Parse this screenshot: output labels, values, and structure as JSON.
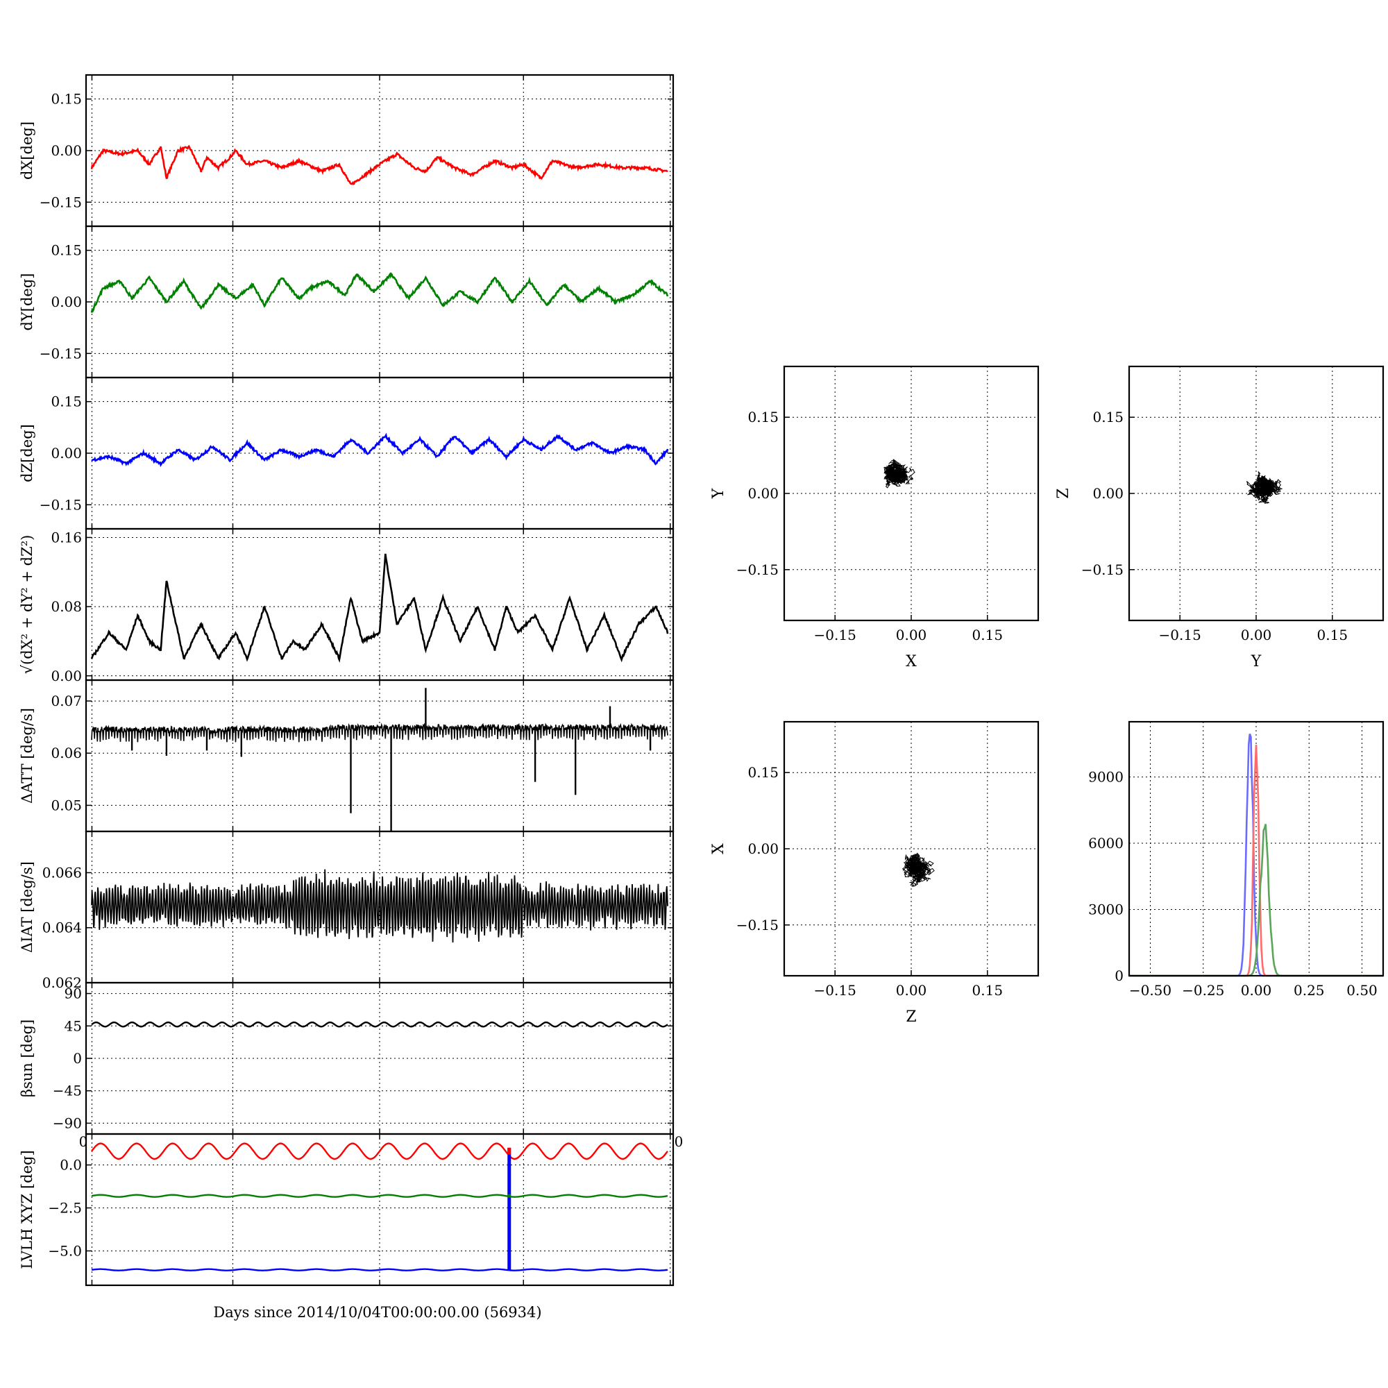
{
  "figure": {
    "xlabel": "Days since 2014/10/04T00:00:00.00 (56934)"
  },
  "chart_data": [
    {
      "id": "dx",
      "type": "line",
      "ylabel": "dX[deg]",
      "color": "#ff0000",
      "ylim": [
        -0.22,
        0.22
      ],
      "yticks": [
        -0.15,
        0.0,
        0.15
      ],
      "yticklabels": [
        "−0.15",
        "0.00",
        "0.15"
      ],
      "xlim": [
        0,
        1
      ],
      "grid": true,
      "x": [
        0,
        0.02,
        0.05,
        0.08,
        0.1,
        0.12,
        0.13,
        0.15,
        0.17,
        0.19,
        0.2,
        0.22,
        0.24,
        0.25,
        0.27,
        0.3,
        0.33,
        0.36,
        0.4,
        0.43,
        0.45,
        0.5,
        0.53,
        0.56,
        0.58,
        0.6,
        0.63,
        0.66,
        0.7,
        0.73,
        0.75,
        0.78,
        0.8,
        0.84,
        0.88,
        0.92,
        0.96,
        1.0
      ],
      "y": [
        -0.05,
        0.0,
        -0.01,
        0.0,
        -0.04,
        0.01,
        -0.08,
        0.0,
        0.01,
        -0.06,
        -0.02,
        -0.05,
        -0.02,
        0.0,
        -0.04,
        -0.03,
        -0.05,
        -0.03,
        -0.06,
        -0.04,
        -0.1,
        -0.04,
        -0.01,
        -0.05,
        -0.06,
        -0.02,
        -0.05,
        -0.07,
        -0.03,
        -0.05,
        -0.04,
        -0.08,
        -0.03,
        -0.05,
        -0.04,
        -0.05,
        -0.05,
        -0.06
      ]
    },
    {
      "id": "dy",
      "type": "line",
      "ylabel": "dY[deg]",
      "color": "#008000",
      "ylim": [
        -0.22,
        0.22
      ],
      "yticks": [
        -0.15,
        0.0,
        0.15
      ],
      "yticklabels": [
        "−0.15",
        "0.00",
        "0.15"
      ],
      "xlim": [
        0,
        1
      ],
      "grid": true,
      "x": [
        0,
        0.02,
        0.05,
        0.07,
        0.1,
        0.13,
        0.16,
        0.19,
        0.22,
        0.25,
        0.28,
        0.3,
        0.33,
        0.36,
        0.38,
        0.41,
        0.44,
        0.46,
        0.49,
        0.52,
        0.55,
        0.58,
        0.61,
        0.64,
        0.67,
        0.7,
        0.73,
        0.76,
        0.79,
        0.82,
        0.85,
        0.88,
        0.91,
        0.94,
        0.97,
        1.0
      ],
      "y": [
        -0.03,
        0.04,
        0.06,
        0.01,
        0.07,
        0.0,
        0.06,
        -0.02,
        0.05,
        0.01,
        0.05,
        -0.01,
        0.07,
        0.01,
        0.04,
        0.06,
        0.02,
        0.08,
        0.03,
        0.08,
        0.01,
        0.07,
        -0.01,
        0.03,
        0.0,
        0.07,
        0.0,
        0.06,
        -0.01,
        0.05,
        0.0,
        0.04,
        0.0,
        0.02,
        0.06,
        0.02
      ]
    },
    {
      "id": "dz",
      "type": "line",
      "ylabel": "dZ[deg]",
      "color": "#0000ff",
      "ylim": [
        -0.22,
        0.22
      ],
      "yticks": [
        -0.15,
        0.0,
        0.15
      ],
      "yticklabels": [
        "−0.15",
        "0.00",
        "0.15"
      ],
      "xlim": [
        0,
        1
      ],
      "grid": true,
      "x": [
        0,
        0.03,
        0.06,
        0.09,
        0.12,
        0.15,
        0.18,
        0.21,
        0.24,
        0.27,
        0.3,
        0.33,
        0.36,
        0.39,
        0.42,
        0.45,
        0.48,
        0.51,
        0.54,
        0.57,
        0.6,
        0.63,
        0.66,
        0.69,
        0.72,
        0.75,
        0.78,
        0.81,
        0.84,
        0.87,
        0.9,
        0.93,
        0.96,
        0.98,
        1.0
      ],
      "y": [
        -0.02,
        -0.01,
        -0.03,
        0.0,
        -0.03,
        0.01,
        -0.02,
        0.02,
        -0.02,
        0.03,
        -0.02,
        0.01,
        -0.01,
        0.01,
        -0.01,
        0.04,
        0.0,
        0.05,
        0.0,
        0.04,
        -0.01,
        0.05,
        0.0,
        0.04,
        -0.01,
        0.04,
        0.01,
        0.05,
        0.01,
        0.03,
        0.0,
        0.02,
        0.01,
        -0.03,
        0.01
      ]
    },
    {
      "id": "mag",
      "type": "line",
      "ylabel": "√(dX² + dY² + dZ²)",
      "color": "#000000",
      "ylim": [
        -0.005,
        0.17
      ],
      "yticks": [
        0.0,
        0.08,
        0.16
      ],
      "yticklabels": [
        "0.00",
        "0.08",
        "0.16"
      ],
      "xlim": [
        0,
        1
      ],
      "grid": true,
      "x": [
        0,
        0.03,
        0.06,
        0.08,
        0.1,
        0.12,
        0.13,
        0.16,
        0.19,
        0.22,
        0.25,
        0.27,
        0.3,
        0.33,
        0.35,
        0.37,
        0.4,
        0.43,
        0.45,
        0.47,
        0.5,
        0.51,
        0.53,
        0.56,
        0.58,
        0.61,
        0.64,
        0.67,
        0.7,
        0.72,
        0.74,
        0.77,
        0.8,
        0.83,
        0.86,
        0.89,
        0.92,
        0.95,
        0.98,
        1.0
      ],
      "y": [
        0.02,
        0.05,
        0.03,
        0.07,
        0.04,
        0.03,
        0.11,
        0.02,
        0.06,
        0.02,
        0.05,
        0.02,
        0.08,
        0.02,
        0.04,
        0.03,
        0.06,
        0.02,
        0.09,
        0.04,
        0.05,
        0.14,
        0.06,
        0.09,
        0.03,
        0.09,
        0.04,
        0.08,
        0.03,
        0.08,
        0.05,
        0.07,
        0.03,
        0.09,
        0.03,
        0.07,
        0.02,
        0.06,
        0.08,
        0.05
      ]
    },
    {
      "id": "datt",
      "type": "line",
      "ylabel": "ΔATT [deg/s]",
      "color": "#000000",
      "ylim": [
        0.045,
        0.074
      ],
      "yticks": [
        0.05,
        0.06,
        0.07
      ],
      "yticklabels": [
        "0.05",
        "0.06",
        "0.07"
      ],
      "xlim": [
        0,
        1
      ],
      "grid": true,
      "baseline": 0.0645,
      "spikes_x": [
        0.07,
        0.13,
        0.2,
        0.26,
        0.45,
        0.52,
        0.58,
        0.77,
        0.84,
        0.9,
        0.97
      ],
      "spikes_y": [
        0.0605,
        0.0595,
        0.0605,
        0.0593,
        0.0485,
        0.045,
        0.0725,
        0.0545,
        0.052,
        0.069,
        0.0605
      ]
    },
    {
      "id": "diat",
      "type": "line",
      "ylabel": "ΔIAT [deg/s]",
      "color": "#000000",
      "ylim": [
        0.062,
        0.0675
      ],
      "yticks": [
        0.062,
        0.064,
        0.066
      ],
      "yticklabels": [
        "0.062",
        "0.064",
        "0.066"
      ],
      "xlim": [
        0,
        1
      ],
      "grid": true,
      "center": 0.0648
    },
    {
      "id": "beta",
      "type": "line",
      "ylabel": "βsun [deg]",
      "color": "#000000",
      "ylim": [
        -105,
        105
      ],
      "yticks": [
        -90,
        -45,
        0,
        45,
        90
      ],
      "yticklabels": [
        "−90",
        "−45",
        "0",
        "45",
        "90"
      ],
      "xlim": [
        0,
        1
      ],
      "grid": true,
      "level": 47,
      "xticklabels_visible": [
        "0",
        "0"
      ]
    },
    {
      "id": "lvlh",
      "type": "line",
      "ylabel": "LVLH XYZ [deg]",
      "color": "#000000",
      "ylim": [
        -7.0,
        1.8
      ],
      "yticks": [
        -5.0,
        -2.5,
        0.0
      ],
      "yticklabels": [
        "−5.0",
        "−2.5",
        "0.0"
      ],
      "xlim": [
        0,
        1
      ],
      "grid": true,
      "series": [
        {
          "color": "#ff0000",
          "level": 0.8,
          "amp": 0.45
        },
        {
          "color": "#008000",
          "level": -1.8,
          "amp": 0.06
        },
        {
          "color": "#0000ff",
          "level": -6.1,
          "amp": 0.04
        }
      ],
      "spike_x": 0.725
    },
    {
      "id": "xy",
      "type": "scatter",
      "xlabel": "X",
      "ylabel": "Y",
      "xlim": [
        -0.25,
        0.25
      ],
      "ylim": [
        -0.25,
        0.25
      ],
      "xticks": [
        -0.15,
        0.0,
        0.15
      ],
      "yticks": [
        -0.15,
        0.0,
        0.15
      ],
      "ticklabels": [
        "−0.15",
        "0.00",
        "0.15"
      ],
      "grid": true,
      "center": [
        -0.03,
        0.04
      ]
    },
    {
      "id": "yz",
      "type": "scatter",
      "xlabel": "Y",
      "ylabel": "Z",
      "xlim": [
        -0.25,
        0.25
      ],
      "ylim": [
        -0.25,
        0.25
      ],
      "xticks": [
        -0.15,
        0.0,
        0.15
      ],
      "yticks": [
        -0.15,
        0.0,
        0.15
      ],
      "ticklabels": [
        "−0.15",
        "0.00",
        "0.15"
      ],
      "grid": true,
      "center": [
        0.02,
        0.01
      ]
    },
    {
      "id": "zx",
      "type": "scatter",
      "xlabel": "Z",
      "ylabel": "X",
      "xlim": [
        -0.25,
        0.25
      ],
      "ylim": [
        -0.25,
        0.25
      ],
      "xticks": [
        -0.15,
        0.0,
        0.15
      ],
      "yticks": [
        -0.15,
        0.0,
        0.15
      ],
      "ticklabels": [
        "−0.15",
        "0.00",
        "0.15"
      ],
      "grid": true,
      "center": [
        0.01,
        -0.04
      ]
    },
    {
      "id": "hist",
      "type": "bar",
      "xlim": [
        -0.6,
        0.6
      ],
      "ylim": [
        0,
        11500
      ],
      "xticks": [
        -0.5,
        -0.25,
        0.0,
        0.25,
        0.5
      ],
      "xticklabels": [
        "−0.50",
        "−0.25",
        "0.00",
        "0.25",
        "0.50"
      ],
      "yticks": [
        0,
        3000,
        6000,
        9000
      ],
      "yticklabels": [
        "0",
        "3000",
        "6000",
        "9000"
      ],
      "grid": true,
      "series": [
        {
          "color": "#6b6bff",
          "mean": -0.03,
          "sd": 0.015,
          "peak": 11200
        },
        {
          "color": "#ff6b6b",
          "mean": 0.0,
          "sd": 0.012,
          "peak": 10500
        },
        {
          "color": "#5aa55a",
          "mean": 0.04,
          "sd": 0.02,
          "peak": 6500
        }
      ]
    }
  ]
}
